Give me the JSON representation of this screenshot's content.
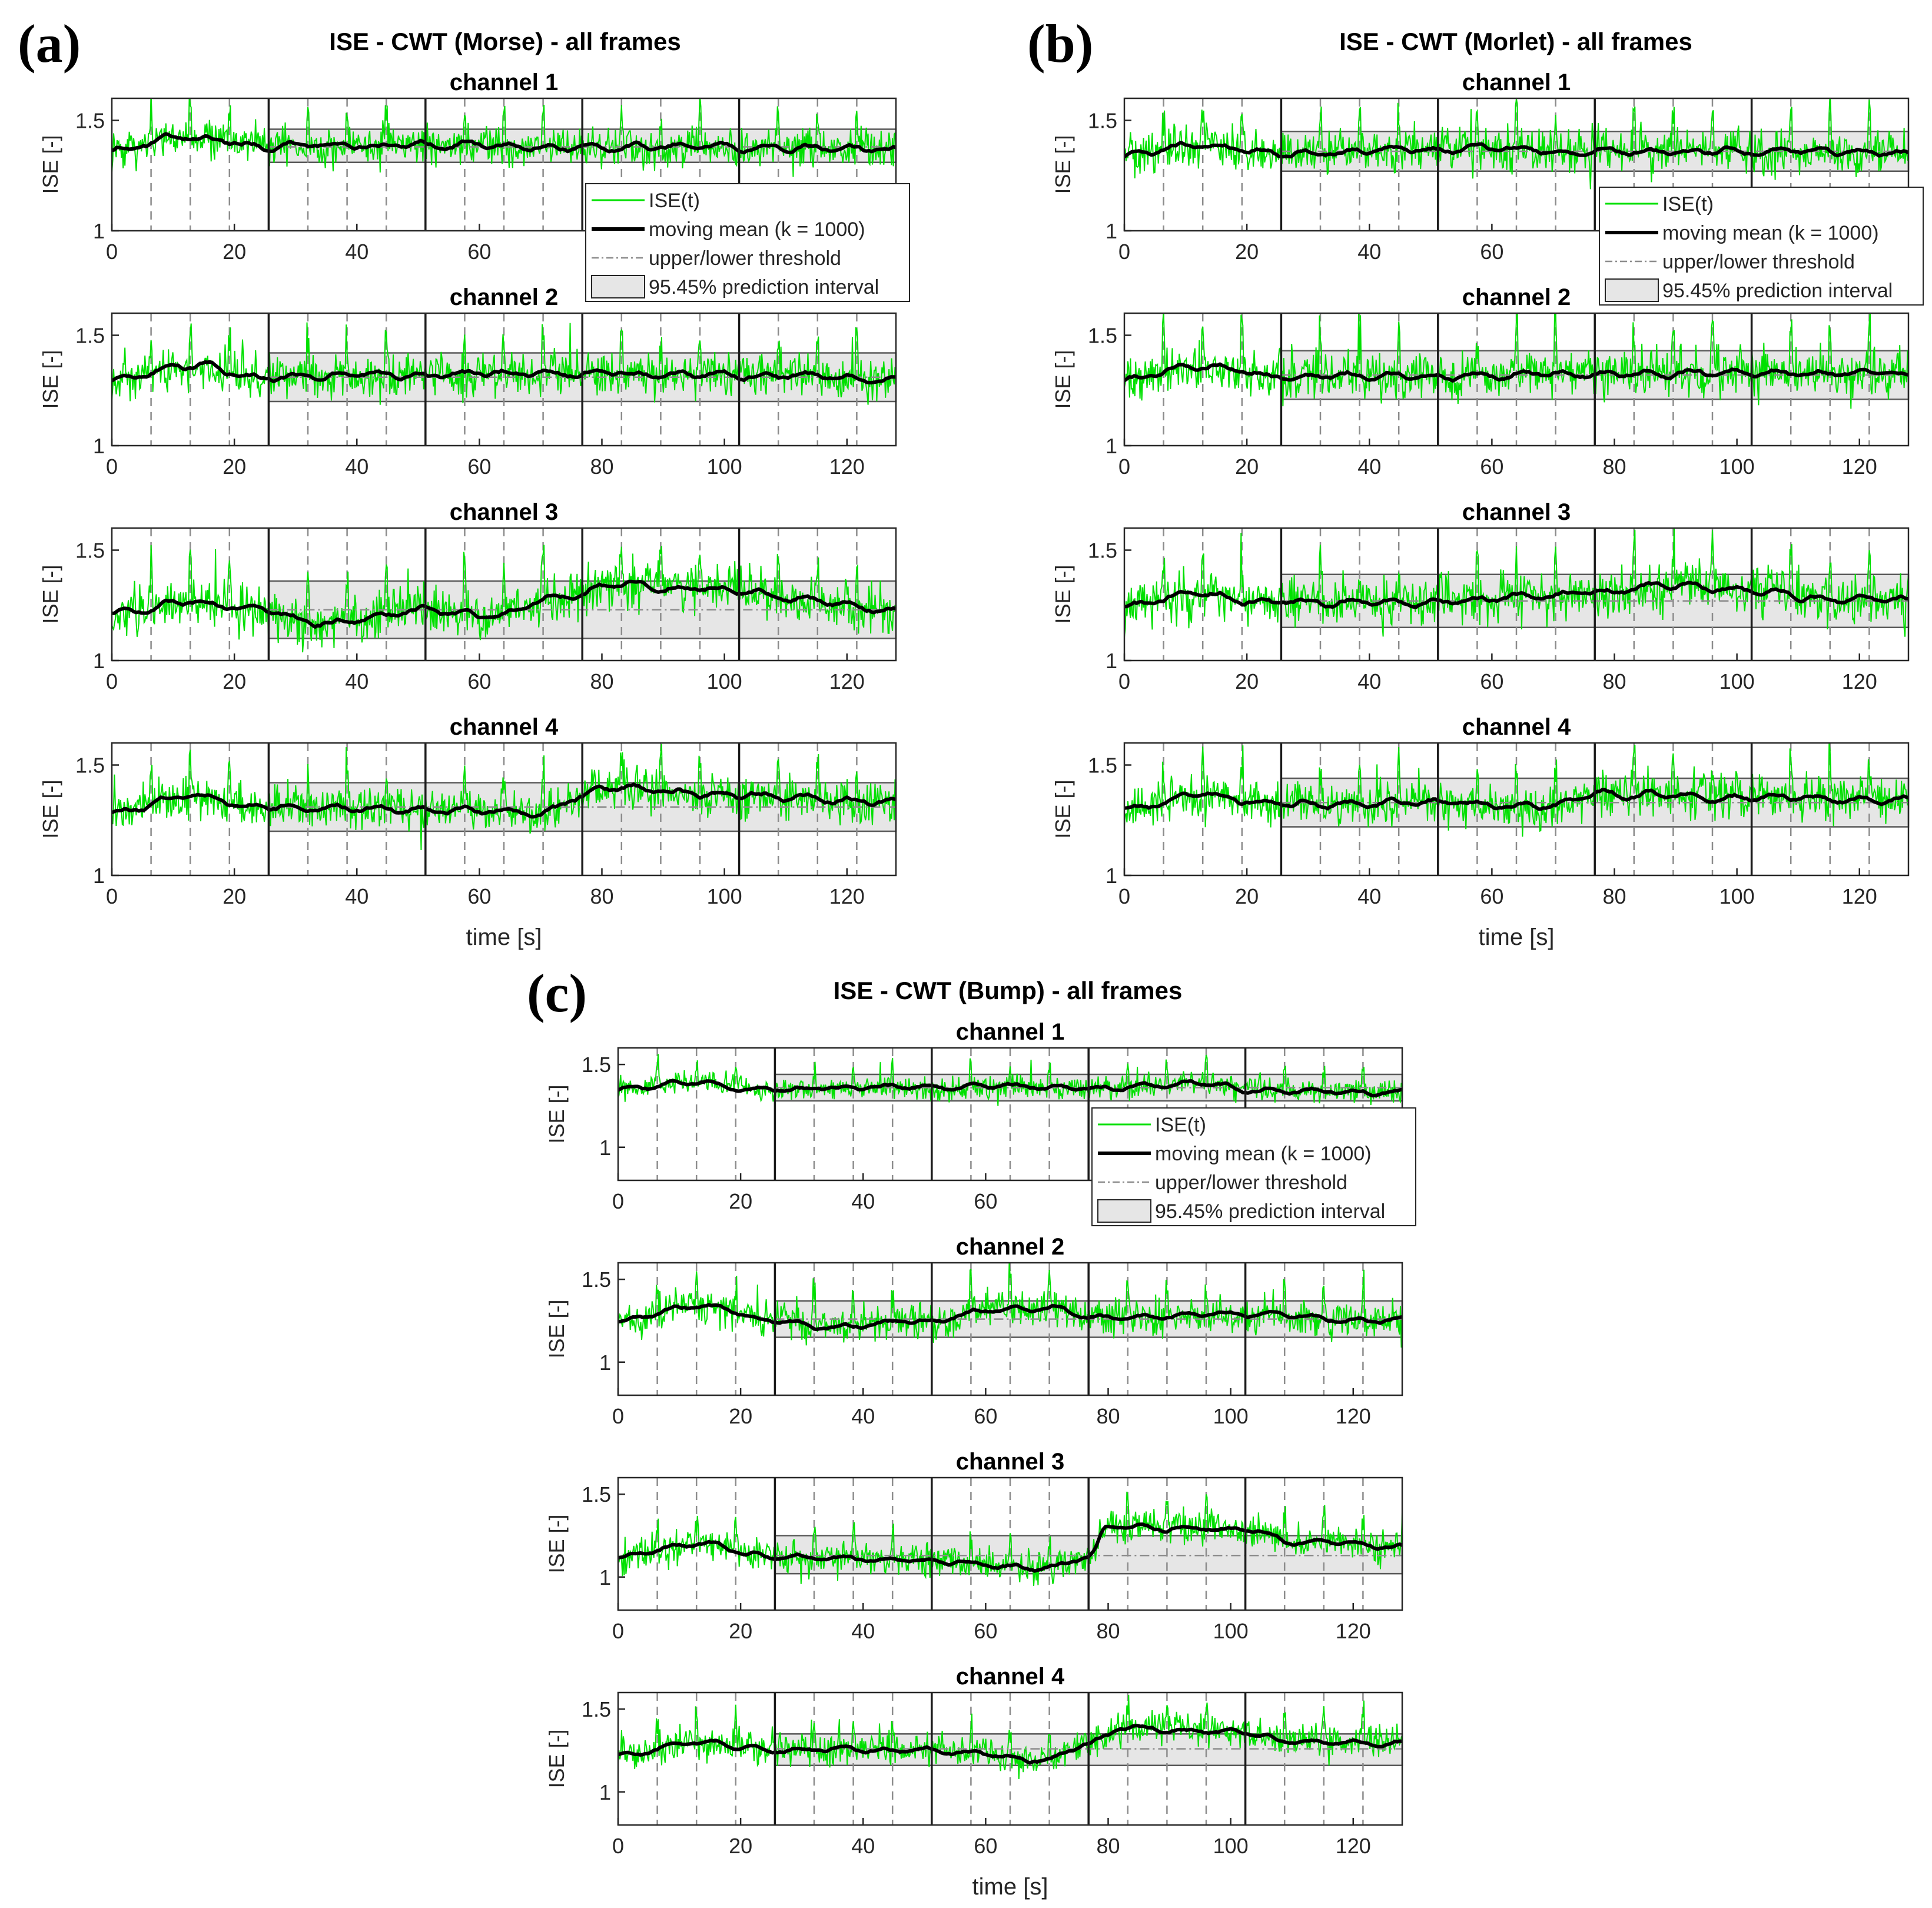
{
  "chart_data": [
    {
      "panel": "(a)",
      "title": "ISE - CWT (Morse) - all frames",
      "type": "line",
      "legend": {
        "placement": "bottom-right of channel 1",
        "entries": [
          "ISE(t)",
          "moving mean (k = 1000)",
          "upper/lower threshold",
          "95.45% prediction interval"
        ]
      },
      "xlabel": "time [s]",
      "ylabel": "ISE [-]",
      "xlim": [
        0,
        128
      ],
      "ylim": [
        1,
        1.6
      ],
      "xticks": [
        "0",
        "20",
        "40",
        "60",
        "80",
        "100",
        "120"
      ],
      "yticks": [
        "1",
        "1.5"
      ],
      "frame_boundaries_s": [
        25.6,
        51.2,
        76.8,
        102.4
      ],
      "dashed_markers_s": [
        6.4,
        12.8,
        19.2,
        32,
        38.4,
        44.8,
        57.6,
        64,
        70.4,
        83.2,
        89.6,
        96,
        108.8,
        115.2,
        121.6
      ],
      "channels": [
        {
          "name": "channel 1",
          "baseline": 1.38,
          "band": [
            1.31,
            1.46
          ],
          "threshold": 1.38,
          "mean_knots": [
            [
              0,
              1.37
            ],
            [
              12.8,
              1.42
            ],
            [
              25.6,
              1.38
            ],
            [
              51.2,
              1.39
            ],
            [
              76.8,
              1.38
            ],
            [
              102.4,
              1.38
            ],
            [
              128,
              1.37
            ]
          ],
          "noise": 0.06,
          "seed": 11
        },
        {
          "name": "channel 2",
          "baseline": 1.31,
          "band": [
            1.2,
            1.42
          ],
          "threshold": 1.31,
          "mean_knots": [
            [
              0,
              1.3
            ],
            [
              12.8,
              1.36
            ],
            [
              25.6,
              1.31
            ],
            [
              51.2,
              1.32
            ],
            [
              76.8,
              1.33
            ],
            [
              102.4,
              1.32
            ],
            [
              128,
              1.3
            ]
          ],
          "noise": 0.07,
          "seed": 23
        },
        {
          "name": "channel 3",
          "baseline": 1.22,
          "band": [
            1.1,
            1.36
          ],
          "threshold": 1.23,
          "mean_knots": [
            [
              0,
              1.22
            ],
            [
              12.8,
              1.27
            ],
            [
              25.6,
              1.22
            ],
            [
              33,
              1.17
            ],
            [
              51.2,
              1.23
            ],
            [
              60,
              1.2
            ],
            [
              76.8,
              1.3
            ],
            [
              80,
              1.34
            ],
            [
              102.4,
              1.33
            ],
            [
              110,
              1.28
            ],
            [
              128,
              1.23
            ]
          ],
          "noise": 0.08,
          "seed": 37
        },
        {
          "name": "channel 4",
          "baseline": 1.3,
          "band": [
            1.2,
            1.42
          ],
          "threshold": 1.31,
          "mean_knots": [
            [
              0,
              1.29
            ],
            [
              12.8,
              1.35
            ],
            [
              25.6,
              1.31
            ],
            [
              51.2,
              1.3
            ],
            [
              70,
              1.28
            ],
            [
              76.8,
              1.35
            ],
            [
              80,
              1.4
            ],
            [
              102.4,
              1.36
            ],
            [
              128,
              1.33
            ]
          ],
          "noise": 0.07,
          "seed": 41
        }
      ]
    },
    {
      "panel": "(b)",
      "title": "ISE - CWT (Morlet) - all frames",
      "type": "line",
      "legend": {
        "placement": "bottom-right of channel 1",
        "entries": [
          "ISE(t)",
          "moving mean (k = 1000)",
          "upper/lower threshold",
          "95.45% prediction interval"
        ]
      },
      "xlabel": "time [s]",
      "ylabel": "ISE [-]",
      "xlim": [
        0,
        128
      ],
      "ylim": [
        1,
        1.6
      ],
      "xticks": [
        "0",
        "20",
        "40",
        "60",
        "80",
        "100",
        "120"
      ],
      "yticks": [
        "1",
        "1.5"
      ],
      "frame_boundaries_s": [
        25.6,
        51.2,
        76.8,
        102.4
      ],
      "dashed_markers_s": [
        6.4,
        12.8,
        19.2,
        32,
        38.4,
        44.8,
        57.6,
        64,
        70.4,
        83.2,
        89.6,
        96,
        108.8,
        115.2,
        121.6
      ],
      "channels": [
        {
          "name": "channel 1",
          "baseline": 1.35,
          "band": [
            1.27,
            1.45
          ],
          "threshold": 1.36,
          "mean_knots": [
            [
              0,
              1.34
            ],
            [
              12.8,
              1.39
            ],
            [
              25.6,
              1.35
            ],
            [
              51.2,
              1.37
            ],
            [
              76.8,
              1.36
            ],
            [
              102.4,
              1.36
            ],
            [
              128,
              1.35
            ]
          ],
          "noise": 0.07,
          "seed": 53
        },
        {
          "name": "channel 2",
          "baseline": 1.31,
          "band": [
            1.21,
            1.43
          ],
          "threshold": 1.32,
          "mean_knots": [
            [
              0,
              1.3
            ],
            [
              12.8,
              1.36
            ],
            [
              25.6,
              1.31
            ],
            [
              51.2,
              1.32
            ],
            [
              76.8,
              1.33
            ],
            [
              102.4,
              1.33
            ],
            [
              128,
              1.32
            ]
          ],
          "noise": 0.08,
          "seed": 61
        },
        {
          "name": "channel 3",
          "baseline": 1.27,
          "band": [
            1.15,
            1.39
          ],
          "threshold": 1.27,
          "mean_knots": [
            [
              0,
              1.25
            ],
            [
              12.8,
              1.3
            ],
            [
              25.6,
              1.26
            ],
            [
              51.2,
              1.27
            ],
            [
              76.8,
              1.3
            ],
            [
              90,
              1.34
            ],
            [
              102.4,
              1.32
            ],
            [
              115,
              1.28
            ],
            [
              128,
              1.27
            ]
          ],
          "noise": 0.08,
          "seed": 73
        },
        {
          "name": "channel 4",
          "baseline": 1.32,
          "band": [
            1.22,
            1.44
          ],
          "threshold": 1.33,
          "mean_knots": [
            [
              0,
              1.31
            ],
            [
              12.8,
              1.36
            ],
            [
              25.6,
              1.32
            ],
            [
              51.2,
              1.33
            ],
            [
              70,
              1.31
            ],
            [
              76.8,
              1.37
            ],
            [
              102.4,
              1.36
            ],
            [
              128,
              1.34
            ]
          ],
          "noise": 0.07,
          "seed": 83
        }
      ]
    },
    {
      "panel": "(c)",
      "title": "ISE - CWT (Bump) - all frames",
      "type": "line",
      "legend": {
        "placement": "bottom-right of channel 1",
        "entries": [
          "ISE(t)",
          "moving mean (k = 1000)",
          "upper/lower threshold",
          "95.45% prediction interval"
        ]
      },
      "xlabel": "time [s]",
      "ylabel": "ISE [-]",
      "xlim": [
        0,
        128
      ],
      "ylim": [
        0.8,
        1.6
      ],
      "xticks": [
        "0",
        "20",
        "40",
        "60",
        "80",
        "100",
        "120"
      ],
      "yticks": [
        "1",
        "1.5"
      ],
      "frame_boundaries_s": [
        25.6,
        51.2,
        76.8,
        102.4
      ],
      "dashed_markers_s": [
        6.4,
        12.8,
        19.2,
        32,
        38.4,
        44.8,
        57.6,
        64,
        70.4,
        83.2,
        89.6,
        96,
        108.8,
        115.2,
        121.6
      ],
      "channels": [
        {
          "name": "channel 1",
          "baseline": 1.36,
          "band": [
            1.28,
            1.44
          ],
          "threshold": 1.36,
          "mean_knots": [
            [
              0,
              1.35
            ],
            [
              12.8,
              1.39
            ],
            [
              25.6,
              1.35
            ],
            [
              51.2,
              1.36
            ],
            [
              76.8,
              1.36
            ],
            [
              96,
              1.39
            ],
            [
              102.4,
              1.35
            ],
            [
              128,
              1.34
            ]
          ],
          "noise": 0.05,
          "seed": 97
        },
        {
          "name": "channel 2",
          "baseline": 1.26,
          "band": [
            1.15,
            1.37
          ],
          "threshold": 1.26,
          "mean_knots": [
            [
              0,
              1.25
            ],
            [
              12.8,
              1.34
            ],
            [
              25.6,
              1.26
            ],
            [
              33,
              1.21
            ],
            [
              51.2,
              1.25
            ],
            [
              60,
              1.31
            ],
            [
              72,
              1.33
            ],
            [
              76.8,
              1.27
            ],
            [
              102.4,
              1.28
            ],
            [
              128,
              1.25
            ]
          ],
          "noise": 0.08,
          "seed": 101
        },
        {
          "name": "channel 3",
          "baseline": 1.13,
          "band": [
            1.02,
            1.25
          ],
          "threshold": 1.13,
          "mean_knots": [
            [
              0,
              1.12
            ],
            [
              12.8,
              1.2
            ],
            [
              25.6,
              1.12
            ],
            [
              51.2,
              1.1
            ],
            [
              70,
              1.05
            ],
            [
              76.8,
              1.12
            ],
            [
              80,
              1.3
            ],
            [
              102.4,
              1.29
            ],
            [
              110,
              1.21
            ],
            [
              128,
              1.18
            ]
          ],
          "noise": 0.07,
          "seed": 113
        },
        {
          "name": "channel 4",
          "baseline": 1.26,
          "band": [
            1.16,
            1.35
          ],
          "threshold": 1.26,
          "mean_knots": [
            [
              0,
              1.23
            ],
            [
              12.8,
              1.3
            ],
            [
              25.6,
              1.26
            ],
            [
              51.2,
              1.25
            ],
            [
              70,
              1.2
            ],
            [
              76.8,
              1.3
            ],
            [
              83,
              1.39
            ],
            [
              102.4,
              1.36
            ],
            [
              110,
              1.31
            ],
            [
              128,
              1.3
            ]
          ],
          "noise": 0.07,
          "seed": 131
        }
      ]
    }
  ],
  "colors": {
    "signal": "#00e000",
    "mean": "#000000",
    "threshold": "#8c8c8c",
    "band_fill": "#e6e6e6",
    "band_edge": "#5a5a5a",
    "axes": "#262626",
    "dashed": "#8c8c8c"
  }
}
